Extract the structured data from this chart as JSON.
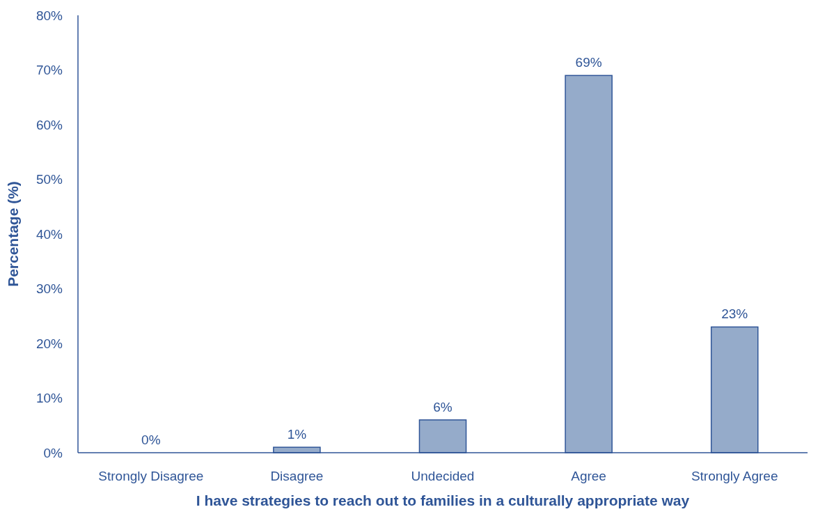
{
  "chart_data": {
    "type": "bar",
    "xlabel": "I have strategies to reach out to families in a culturally appropriate way",
    "ylabel": "Percentage (%)",
    "categories": [
      "Strongly Disagree",
      "Disagree",
      "Undecided",
      "Agree",
      "Strongly Agree"
    ],
    "values": [
      0,
      1,
      6,
      69,
      23
    ],
    "value_labels": [
      "0%",
      "1%",
      "6%",
      "69%",
      "23%"
    ],
    "color": "#95abca",
    "ylim": [
      0,
      80
    ],
    "yticks": [
      {
        "value": 0,
        "label": "0%"
      },
      {
        "value": 10,
        "label": "10%"
      },
      {
        "value": 20,
        "label": "20%"
      },
      {
        "value": 30,
        "label": "30%"
      },
      {
        "value": 40,
        "label": "40%"
      },
      {
        "value": 50,
        "label": "50%"
      },
      {
        "value": 60,
        "label": "60%"
      },
      {
        "value": 70,
        "label": "70%"
      },
      {
        "value": 80,
        "label": "80%"
      }
    ],
    "grid": false
  }
}
